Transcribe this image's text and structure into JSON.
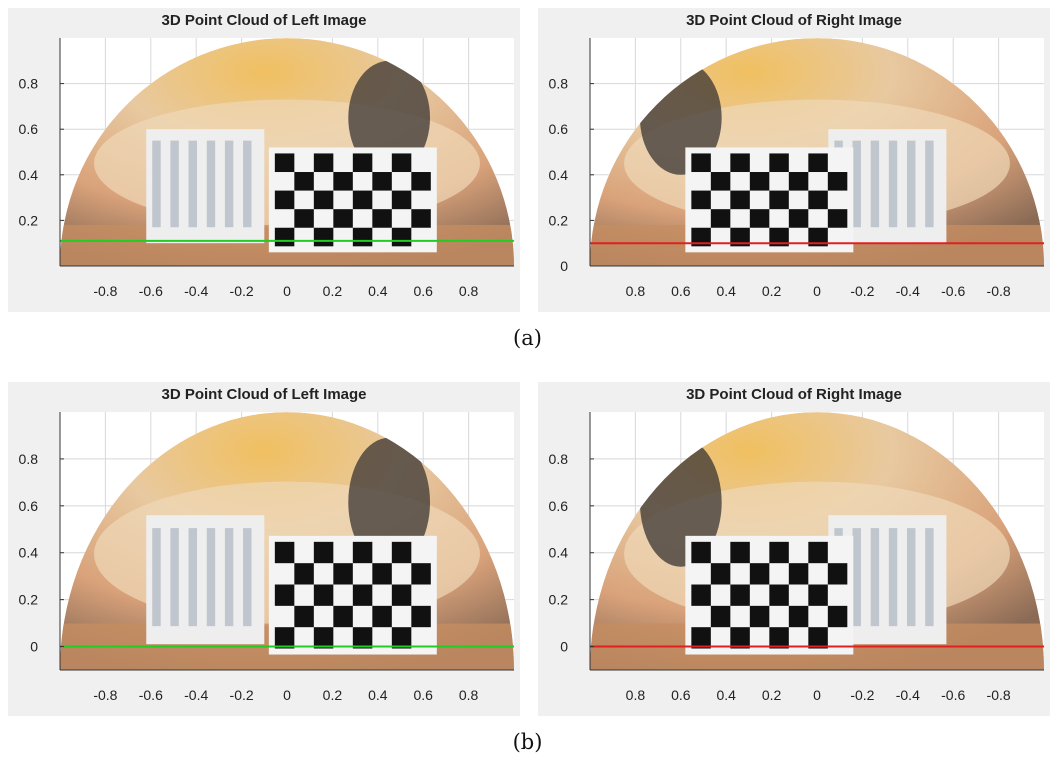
{
  "figure_a": {
    "caption": "(a)",
    "left": {
      "title": "3D Point Cloud of Left Image"
    },
    "right": {
      "title": "3D Point Cloud of Right Image"
    }
  },
  "figure_b": {
    "caption": "(b)",
    "left": {
      "title": "3D Point Cloud of Left Image"
    },
    "right": {
      "title": "3D Point Cloud of Right Image"
    }
  },
  "colors": {
    "left_line": "#22cc22",
    "right_line": "#e02020",
    "panel_bg": "#f0f0f0",
    "grid": "#d8d8d8",
    "checker_dark": "#111111",
    "checker_light": "#f4f4f4",
    "wall_warm": "#d9a27a",
    "dome_highlight": "#f0c060"
  },
  "chart_data": [
    {
      "type": "image-plot",
      "id": "a-left",
      "title": "3D Point Cloud of Left Image",
      "xlim": [
        -1,
        1
      ],
      "ylim": [
        0,
        1
      ],
      "xticks": [
        -0.8,
        -0.6,
        -0.4,
        -0.2,
        0,
        0.2,
        0.4,
        0.6,
        0.8
      ],
      "xtick_labels": [
        "-0.8",
        "-0.6",
        "-0.4",
        "-0.2",
        "0",
        "0.2",
        "0.4",
        "0.6",
        "0.8"
      ],
      "yticks": [
        0.2,
        0.4,
        0.6,
        0.8
      ],
      "ytick_labels": [
        "0.2",
        "0.4",
        "0.6",
        "0.8"
      ],
      "xreversed": false,
      "line": {
        "color": "green",
        "y": 0.11
      }
    },
    {
      "type": "image-plot",
      "id": "a-right",
      "title": "3D Point Cloud of Right Image",
      "xlim": [
        -1,
        1
      ],
      "ylim": [
        0,
        1
      ],
      "xticks": [
        0.8,
        0.6,
        0.4,
        0.2,
        0,
        -0.2,
        -0.4,
        -0.6,
        -0.8
      ],
      "xtick_labels": [
        "0.8",
        "0.6",
        "0.4",
        "0.2",
        "0",
        "-0.2",
        "-0.4",
        "-0.6",
        "-0.8"
      ],
      "yticks": [
        0,
        0.2,
        0.4,
        0.6,
        0.8
      ],
      "ytick_labels": [
        "0",
        "0.2",
        "0.4",
        "0.6",
        "0.8"
      ],
      "xreversed": true,
      "line": {
        "color": "red",
        "y": 0.1
      }
    },
    {
      "type": "image-plot",
      "id": "b-left",
      "title": "3D Point Cloud of Left Image",
      "xlim": [
        -1,
        1
      ],
      "ylim": [
        -0.1,
        1
      ],
      "xticks": [
        -0.8,
        -0.6,
        -0.4,
        -0.2,
        0,
        0.2,
        0.4,
        0.6,
        0.8
      ],
      "xtick_labels": [
        "-0.8",
        "-0.6",
        "-0.4",
        "-0.2",
        "0",
        "0.2",
        "0.4",
        "0.6",
        "0.8"
      ],
      "yticks": [
        0,
        0.2,
        0.4,
        0.6,
        0.8
      ],
      "ytick_labels": [
        "0",
        "0.2",
        "0.4",
        "0.6",
        "0.8"
      ],
      "xreversed": false,
      "line": {
        "color": "green",
        "y": 0
      }
    },
    {
      "type": "image-plot",
      "id": "b-right",
      "title": "3D Point Cloud of Right Image",
      "xlim": [
        -1,
        1
      ],
      "ylim": [
        -0.1,
        1
      ],
      "xticks": [
        0.8,
        0.6,
        0.4,
        0.2,
        0,
        -0.2,
        -0.4,
        -0.6,
        -0.8
      ],
      "xtick_labels": [
        "0.8",
        "0.6",
        "0.4",
        "0.2",
        "0",
        "-0.2",
        "-0.4",
        "-0.6",
        "-0.8"
      ],
      "yticks": [
        0,
        0.2,
        0.4,
        0.6,
        0.8
      ],
      "ytick_labels": [
        "0",
        "0.2",
        "0.4",
        "0.6",
        "0.8"
      ],
      "xreversed": true,
      "line": {
        "color": "red",
        "y": 0
      }
    }
  ]
}
